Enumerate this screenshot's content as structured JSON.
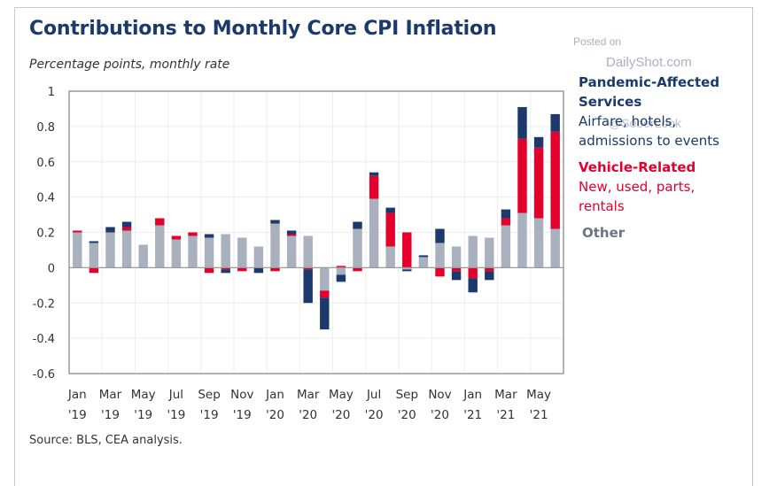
{
  "title": "Contributions to Monthly Core CPI Inflation",
  "subtitle": "Percentage points, monthly rate",
  "source": "Source: BLS, CEA analysis.",
  "watermark": {
    "line1": "Posted on",
    "line2": "DailyShot.com",
    "line3": "@SoberLook"
  },
  "colors": {
    "pandemic": "#1b3a6b",
    "vehicle": "#e4002b",
    "other": "#a8b1bd",
    "other_label": "#6b7585",
    "grid": "#eeeeee",
    "axis": "#9a9a9a"
  },
  "legend": [
    {
      "title": "Pandemic-Affected Services",
      "title_l1": "Pandemic-Affected",
      "title_l2": "Services",
      "desc_l1": "Airfare, hotels,",
      "desc_l2": "admissions to events",
      "key": "pandemic"
    },
    {
      "title": "Vehicle-Related",
      "desc_l1": "New, used, parts,",
      "desc_l2": "rentals",
      "key": "vehicle"
    },
    {
      "title": "Other",
      "key": "other"
    }
  ],
  "chart_data": {
    "type": "bar",
    "stacked": true,
    "title": "Contributions to Monthly Core CPI Inflation",
    "ylabel": "Percentage points, monthly rate",
    "xlabel": "",
    "ylim": [
      -0.6,
      1.0
    ],
    "yticks": [
      1,
      0.8,
      0.6,
      0.4,
      0.2,
      0,
      -0.2,
      -0.4,
      -0.6
    ],
    "ytick_labels": [
      "1",
      "0.8",
      "0.6",
      "0.4",
      "0.2",
      "0",
      "-0.2",
      "-0.4",
      "-0.6"
    ],
    "grid": true,
    "legend_position": "right",
    "categories": [
      "Jan 2019",
      "Feb 2019",
      "Mar 2019",
      "Apr 2019",
      "May 2019",
      "Jun 2019",
      "Jul 2019",
      "Aug 2019",
      "Sep 2019",
      "Oct 2019",
      "Nov 2019",
      "Dec 2019",
      "Jan 2020",
      "Feb 2020",
      "Mar 2020",
      "Apr 2020",
      "May 2020",
      "Jun 2020",
      "Jul 2020",
      "Aug 2020",
      "Sep 2020",
      "Oct 2020",
      "Nov 2020",
      "Dec 2020",
      "Jan 2021",
      "Feb 2021",
      "Mar 2021",
      "Apr 2021",
      "May 2021",
      "Jun 2021"
    ],
    "xtick_labels": [
      {
        "index": 0,
        "l1": "Jan",
        "l2": "'19"
      },
      {
        "index": 2,
        "l1": "Mar",
        "l2": "'19"
      },
      {
        "index": 4,
        "l1": "May",
        "l2": "'19"
      },
      {
        "index": 6,
        "l1": "Jul",
        "l2": "'19"
      },
      {
        "index": 8,
        "l1": "Sep",
        "l2": "'19"
      },
      {
        "index": 10,
        "l1": "Nov",
        "l2": "'19"
      },
      {
        "index": 12,
        "l1": "Jan",
        "l2": "'20"
      },
      {
        "index": 14,
        "l1": "Mar",
        "l2": "'20"
      },
      {
        "index": 16,
        "l1": "May",
        "l2": "'20"
      },
      {
        "index": 18,
        "l1": "Jul",
        "l2": "'20"
      },
      {
        "index": 20,
        "l1": "Sep",
        "l2": "'20"
      },
      {
        "index": 22,
        "l1": "Nov",
        "l2": "'20"
      },
      {
        "index": 24,
        "l1": "Jan",
        "l2": "'21"
      },
      {
        "index": 26,
        "l1": "Mar",
        "l2": "'21"
      },
      {
        "index": 28,
        "l1": "May",
        "l2": "'21"
      }
    ],
    "series": [
      {
        "name": "Other",
        "key": "other",
        "values": [
          0.2,
          0.14,
          0.2,
          0.21,
          0.13,
          0.24,
          0.16,
          0.18,
          0.17,
          0.19,
          0.17,
          0.12,
          0.25,
          0.18,
          0.18,
          -0.13,
          -0.04,
          0.22,
          0.39,
          0.12,
          -0.01,
          0.06,
          0.14,
          0.12,
          0.18,
          0.17,
          0.24,
          0.31,
          0.28,
          0.22
        ]
      },
      {
        "name": "Vehicle-Related",
        "key": "vehicle",
        "values": [
          0.01,
          -0.03,
          0.0,
          0.02,
          0.0,
          0.04,
          0.02,
          0.02,
          -0.03,
          -0.01,
          -0.02,
          0.0,
          -0.02,
          0.01,
          -0.01,
          -0.04,
          0.01,
          -0.02,
          0.13,
          0.19,
          0.2,
          0.0,
          -0.05,
          -0.02,
          -0.06,
          -0.02,
          0.04,
          0.42,
          0.4,
          0.55
        ]
      },
      {
        "name": "Pandemic-Affected Services",
        "key": "pandemic",
        "values": [
          0.0,
          0.01,
          0.03,
          0.03,
          0.0,
          0.0,
          0.0,
          0.0,
          0.02,
          -0.02,
          0.0,
          -0.03,
          0.02,
          0.02,
          -0.19,
          -0.18,
          -0.04,
          0.04,
          0.02,
          0.03,
          -0.01,
          0.01,
          0.08,
          -0.05,
          -0.08,
          -0.05,
          0.05,
          0.18,
          0.06,
          0.1
        ]
      }
    ]
  }
}
